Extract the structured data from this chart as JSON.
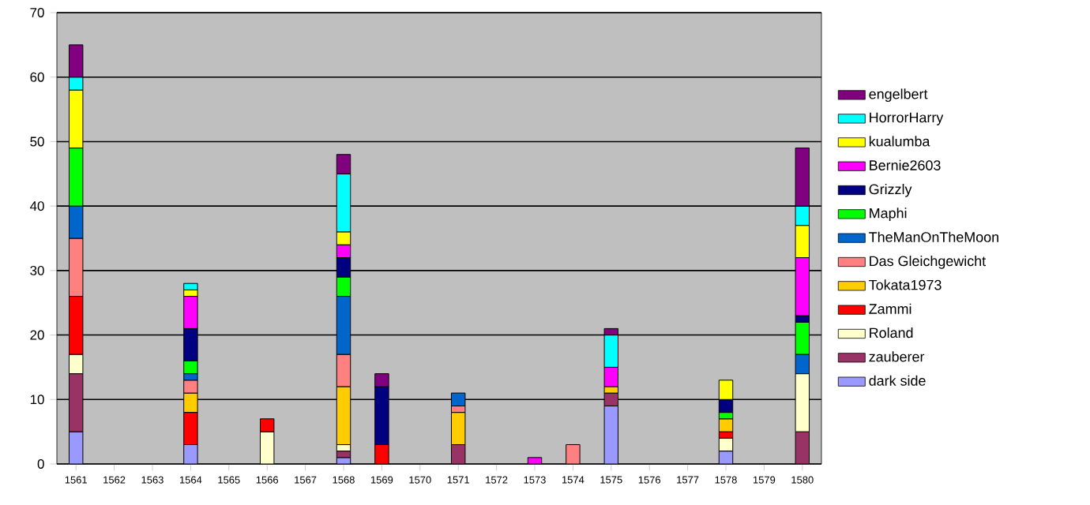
{
  "chart_data": {
    "type": "bar",
    "stacked": true,
    "grid": "y",
    "legend": "right",
    "categories": [
      "1561",
      "1562",
      "1563",
      "1564",
      "1565",
      "1566",
      "1567",
      "1568",
      "1569",
      "1570",
      "1571",
      "1572",
      "1573",
      "1574",
      "1575",
      "1576",
      "1577",
      "1578",
      "1579",
      "1580"
    ],
    "ylim": [
      0,
      70
    ],
    "yticks": [
      0,
      10,
      20,
      30,
      40,
      50,
      60,
      70
    ],
    "series": [
      {
        "name": "dark side",
        "color": "#9999ff",
        "values": [
          5,
          null,
          null,
          3,
          null,
          null,
          null,
          1,
          null,
          null,
          null,
          null,
          null,
          null,
          9,
          null,
          null,
          2,
          null,
          null
        ]
      },
      {
        "name": "zauberer",
        "color": "#993366",
        "values": [
          9,
          null,
          null,
          null,
          null,
          null,
          null,
          1,
          null,
          null,
          3,
          null,
          null,
          null,
          2,
          null,
          null,
          null,
          null,
          5
        ]
      },
      {
        "name": "Roland",
        "color": "#ffffcc",
        "values": [
          3,
          null,
          null,
          null,
          null,
          5,
          null,
          1,
          null,
          null,
          null,
          null,
          null,
          null,
          null,
          null,
          null,
          2,
          null,
          9
        ]
      },
      {
        "name": "Zammi",
        "color": "#ff0000",
        "values": [
          9,
          null,
          null,
          5,
          null,
          2,
          null,
          null,
          3,
          null,
          null,
          null,
          null,
          null,
          null,
          null,
          null,
          1,
          null,
          null
        ]
      },
      {
        "name": "Tokata1973",
        "color": "#ffcc00",
        "values": [
          null,
          null,
          null,
          3,
          null,
          null,
          null,
          9,
          null,
          null,
          5,
          null,
          null,
          null,
          1,
          null,
          null,
          2,
          null,
          null
        ]
      },
      {
        "name": "Das Gleichgewicht",
        "color": "#ff8080",
        "values": [
          9,
          null,
          null,
          2,
          null,
          null,
          null,
          5,
          null,
          null,
          1,
          null,
          null,
          3,
          null,
          null,
          null,
          null,
          null,
          null
        ]
      },
      {
        "name": "TheManOnTheMoon",
        "color": "#0066cc",
        "values": [
          5,
          null,
          null,
          1,
          null,
          null,
          null,
          9,
          null,
          null,
          2,
          null,
          null,
          null,
          null,
          null,
          null,
          null,
          null,
          3
        ]
      },
      {
        "name": "Maphi",
        "color": "#00ff00",
        "values": [
          9,
          null,
          null,
          2,
          null,
          null,
          null,
          3,
          null,
          null,
          null,
          null,
          null,
          null,
          null,
          null,
          null,
          1,
          null,
          5
        ]
      },
      {
        "name": "Grizzly",
        "color": "#000080",
        "values": [
          null,
          null,
          null,
          5,
          null,
          null,
          null,
          3,
          9,
          null,
          null,
          null,
          null,
          null,
          null,
          null,
          null,
          2,
          null,
          1
        ]
      },
      {
        "name": "Bernie2603",
        "color": "#ff00ff",
        "values": [
          null,
          null,
          null,
          5,
          null,
          null,
          null,
          2,
          null,
          null,
          null,
          null,
          1,
          null,
          3,
          null,
          null,
          null,
          null,
          9
        ]
      },
      {
        "name": "kualumba",
        "color": "#ffff00",
        "values": [
          9,
          null,
          null,
          1,
          null,
          null,
          null,
          2,
          null,
          null,
          null,
          null,
          null,
          null,
          null,
          null,
          null,
          3,
          null,
          5
        ]
      },
      {
        "name": "HorrorHarry",
        "color": "#00ffff",
        "values": [
          2,
          null,
          null,
          1,
          null,
          null,
          null,
          9,
          null,
          null,
          null,
          null,
          null,
          null,
          5,
          null,
          null,
          null,
          null,
          3
        ]
      },
      {
        "name": "engelbert",
        "color": "#800080",
        "values": [
          5,
          null,
          null,
          null,
          null,
          null,
          null,
          3,
          2,
          null,
          null,
          null,
          null,
          null,
          1,
          null,
          null,
          null,
          null,
          9
        ]
      }
    ]
  }
}
